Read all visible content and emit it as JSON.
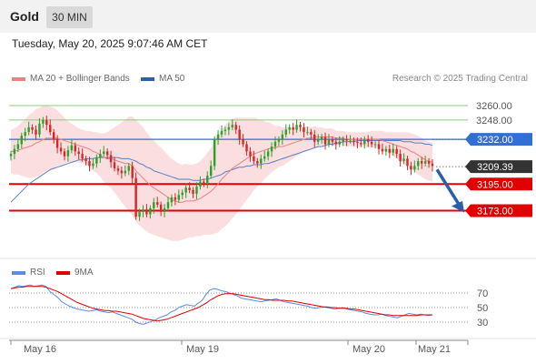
{
  "header": {
    "symbol": "Gold",
    "timeframe": "30 MIN",
    "timestamp": "Tuesday, May 20, 2025 9:07:46 AM CET"
  },
  "legend": {
    "ma20_label": "MA 20 + Bollinger Bands",
    "ma50_label": "MA 50",
    "copyright": "Research © 2025 Trading Central",
    "rsi_label": "RSI",
    "ma9_label": "9MA"
  },
  "colors": {
    "up_candle": "#2ca02c",
    "down_candle": "#d62728",
    "bollinger_fill": "#fadadd",
    "ma20": "#f08080",
    "ma50": "#5b7fc0",
    "resistance_green": "#8fc97a",
    "pivot_blue": "#2f6fd6",
    "support_red": "#e00000",
    "arrow": "#2a5fa8",
    "rsi": "#5b8de0",
    "rsi_ma9": "#e00000"
  },
  "chart_data": {
    "type": "candlestick",
    "y_range": [
      3135,
      3272
    ],
    "x_labels": [
      "May 16",
      "May 19",
      "May 20",
      "May 21"
    ],
    "levels": [
      {
        "name": "resistance-2",
        "value": 3260.0,
        "label": "3260.00",
        "style": "green-line"
      },
      {
        "name": "resistance-1",
        "value": 3248.0,
        "label": "3248.00",
        "style": "green-line"
      },
      {
        "name": "pivot",
        "value": 3232.0,
        "label": "3232.00",
        "style": "blue-line"
      },
      {
        "name": "last-price",
        "value": 3209.39,
        "label": "3209.39",
        "style": "dotted"
      },
      {
        "name": "support-1",
        "value": 3195.0,
        "label": "3195.00",
        "style": "red-line"
      },
      {
        "name": "support-2",
        "value": 3173.0,
        "label": "3173.00",
        "style": "red-line"
      }
    ],
    "closes": [
      3220,
      3224,
      3228,
      3235,
      3238,
      3242,
      3240,
      3236,
      3245,
      3248,
      3244,
      3238,
      3232,
      3225,
      3222,
      3218,
      3223,
      3227,
      3222,
      3220,
      3216,
      3214,
      3210,
      3212,
      3217,
      3220,
      3222,
      3219,
      3213,
      3208,
      3206,
      3204,
      3206,
      3210,
      3200,
      3168,
      3172,
      3174,
      3170,
      3175,
      3180,
      3178,
      3172,
      3175,
      3180,
      3184,
      3182,
      3186,
      3188,
      3192,
      3190,
      3187,
      3193,
      3197,
      3196,
      3202,
      3210,
      3232,
      3236,
      3239,
      3240,
      3242,
      3244,
      3240,
      3232,
      3228,
      3222,
      3218,
      3214,
      3212,
      3216,
      3218,
      3222,
      3226,
      3230,
      3232,
      3236,
      3240,
      3242,
      3240,
      3244,
      3242,
      3238,
      3238,
      3236,
      3230,
      3232,
      3234,
      3228,
      3232,
      3230,
      3228,
      3230,
      3232,
      3231,
      3231,
      3230,
      3229,
      3228,
      3232,
      3230,
      3228,
      3228,
      3224,
      3222,
      3224,
      3221,
      3224,
      3220,
      3214,
      3216,
      3210,
      3207,
      3210,
      3214,
      3212,
      3214,
      3212,
      3210
    ],
    "ma20": [
      3222,
      3222,
      3223,
      3224,
      3225,
      3226,
      3227,
      3229,
      3230,
      3232,
      3233,
      3233,
      3233,
      3233,
      3232,
      3231,
      3230,
      3229,
      3228,
      3227,
      3226,
      3225,
      3224,
      3222,
      3221,
      3219,
      3217,
      3216,
      3216,
      3215,
      3214,
      3213,
      3212,
      3212,
      3210,
      3206,
      3203,
      3200,
      3197,
      3194,
      3192,
      3190,
      3188,
      3186,
      3184,
      3182,
      3181,
      3180,
      3180,
      3181,
      3181,
      3181,
      3182,
      3183,
      3185,
      3187,
      3189,
      3192,
      3195,
      3199,
      3202,
      3205,
      3208,
      3210,
      3212,
      3214,
      3216,
      3218,
      3220,
      3221,
      3222,
      3223,
      3224,
      3225,
      3225,
      3226,
      3226,
      3227,
      3228,
      3229,
      3230,
      3231,
      3232,
      3233,
      3233,
      3234,
      3234,
      3234,
      3234,
      3234,
      3234,
      3233,
      3233,
      3233,
      3232,
      3232,
      3232,
      3232,
      3232,
      3232,
      3232,
      3232,
      3232,
      3232,
      3231,
      3230,
      3229,
      3228,
      3227,
      3226,
      3225,
      3224,
      3222,
      3221,
      3219,
      3217,
      3215,
      3214,
      3213
    ],
    "ma50": [
      3180,
      3183,
      3186,
      3189,
      3192,
      3195,
      3197,
      3199,
      3201,
      3203,
      3205,
      3207,
      3208,
      3209,
      3210,
      3211,
      3212,
      3213,
      3214,
      3215,
      3215,
      3216,
      3216,
      3216,
      3217,
      3217,
      3217,
      3217,
      3217,
      3217,
      3217,
      3216,
      3216,
      3216,
      3215,
      3214,
      3212,
      3211,
      3209,
      3208,
      3206,
      3205,
      3204,
      3203,
      3202,
      3201,
      3200,
      3199,
      3199,
      3199,
      3199,
      3198,
      3198,
      3198,
      3199,
      3199,
      3200,
      3201,
      3202,
      3203,
      3205,
      3206,
      3207,
      3208,
      3209,
      3209,
      3210,
      3210,
      3211,
      3211,
      3211,
      3212,
      3212,
      3213,
      3214,
      3215,
      3216,
      3217,
      3218,
      3219,
      3220,
      3221,
      3222,
      3223,
      3224,
      3225,
      3226,
      3226,
      3227,
      3228,
      3228,
      3229,
      3229,
      3230,
      3230,
      3230,
      3230,
      3231,
      3231,
      3231,
      3231,
      3231,
      3231,
      3231,
      3231,
      3231,
      3231,
      3231,
      3231,
      3231,
      3230,
      3230,
      3230,
      3229,
      3229,
      3229,
      3228,
      3228,
      3227
    ],
    "bb_width": [
      18,
      19,
      20,
      22,
      24,
      26,
      27,
      28,
      28,
      28,
      27,
      26,
      25,
      23,
      21,
      19,
      17,
      16,
      15,
      14,
      14,
      14,
      15,
      16,
      17,
      18,
      20,
      22,
      24,
      27,
      30,
      33,
      36,
      39,
      41,
      42,
      42,
      42,
      41,
      40,
      39,
      38,
      37,
      36,
      35,
      34,
      33,
      32,
      31,
      31,
      30,
      30,
      30,
      31,
      32,
      34,
      36,
      38,
      40,
      41,
      42,
      42,
      41,
      40,
      38,
      36,
      34,
      32,
      30,
      28,
      26,
      24,
      22,
      20,
      18,
      17,
      16,
      15,
      14,
      13,
      12,
      11,
      10,
      10,
      9,
      9,
      8,
      8,
      7,
      7,
      7,
      6,
      6,
      6,
      6,
      6,
      6,
      6,
      6,
      6,
      6,
      7,
      7,
      7,
      8,
      8,
      9,
      10,
      11,
      12,
      13,
      14,
      15,
      15,
      16,
      16,
      16,
      16,
      16
    ],
    "rsi": {
      "ticks": [
        70,
        50,
        30
      ],
      "range": [
        15,
        85
      ],
      "values": [
        76,
        78,
        80,
        79,
        80,
        81,
        79,
        80,
        81,
        79,
        72,
        68,
        64,
        58,
        55,
        52,
        50,
        48,
        47,
        46,
        45,
        46,
        47,
        45,
        44,
        43,
        44,
        42,
        40,
        38,
        36,
        34,
        30,
        28,
        27,
        29,
        31,
        33,
        36,
        38,
        40,
        44,
        46,
        50,
        52,
        54,
        53,
        52,
        56,
        60,
        68,
        74,
        76,
        75,
        73,
        72,
        70,
        68,
        66,
        63,
        62,
        61,
        60,
        59,
        58,
        59,
        60,
        61,
        62,
        60,
        58,
        57,
        56,
        55,
        54,
        53,
        52,
        50,
        49,
        50,
        51,
        50,
        49,
        48,
        49,
        50,
        48,
        47,
        46,
        45,
        44,
        42,
        41,
        40,
        40,
        41,
        39,
        38,
        37,
        36,
        38,
        40,
        42,
        41,
        40,
        41,
        40,
        39,
        40
      ],
      "ma9": [
        76,
        77,
        78,
        78,
        79,
        79,
        79,
        79,
        79,
        78,
        76,
        74,
        72,
        69,
        66,
        63,
        60,
        57,
        55,
        53,
        51,
        49,
        48,
        47,
        46,
        46,
        45,
        45,
        44,
        43,
        42,
        41,
        39,
        37,
        35,
        34,
        33,
        32,
        32,
        33,
        34,
        36,
        38,
        40,
        42,
        44,
        46,
        48,
        50,
        53,
        56,
        60,
        63,
        66,
        68,
        69,
        69,
        69,
        68,
        67,
        66,
        65,
        64,
        63,
        62,
        61,
        61,
        60,
        60,
        60,
        60,
        59,
        59,
        58,
        57,
        56,
        55,
        54,
        53,
        52,
        51,
        51,
        50,
        50,
        49,
        49,
        49,
        48,
        48,
        47,
        46,
        45,
        44,
        43,
        42,
        41,
        40,
        40,
        39,
        39,
        39,
        39,
        39,
        39,
        39,
        40,
        40,
        40,
        40
      ]
    }
  }
}
